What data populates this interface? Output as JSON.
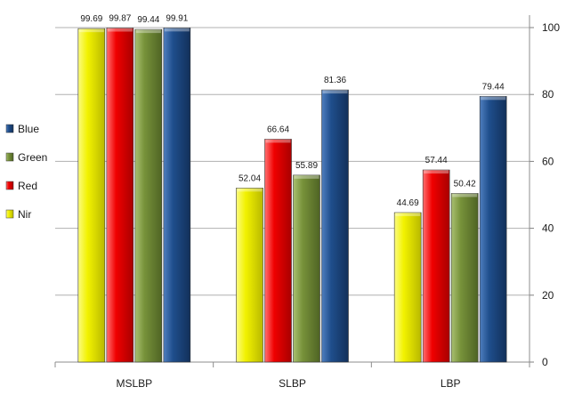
{
  "chart_data": {
    "type": "bar",
    "categories": [
      "MSLBP",
      "SLBP",
      "LBP"
    ],
    "series": [
      {
        "name": "Nir",
        "values": [
          99.69,
          52.04,
          44.69
        ],
        "color": "#f2f200"
      },
      {
        "name": "Red",
        "values": [
          99.87,
          66.64,
          57.44
        ],
        "color": "#f00000"
      },
      {
        "name": "Green",
        "values": [
          99.44,
          55.89,
          50.42
        ],
        "color": "#77923a"
      },
      {
        "name": "Blue",
        "values": [
          99.91,
          81.36,
          79.44
        ],
        "color": "#1f4e8c"
      }
    ],
    "data_labels": [
      [
        "99.69",
        "52.04",
        "44.69"
      ],
      [
        "99.87",
        "66.64",
        "57.44"
      ],
      [
        "99.44",
        "55.89",
        "50.42"
      ],
      [
        "99.91",
        "81.36",
        "79.44"
      ]
    ],
    "legend_order": [
      "Blue",
      "Green",
      "Red",
      "Nir"
    ],
    "legend_position": "left",
    "ylim": [
      0,
      100
    ],
    "yticks": [
      0,
      20,
      40,
      60,
      80,
      100
    ],
    "y_axis_side": "right",
    "gridlines": true,
    "title": "",
    "xlabel": "",
    "ylabel": ""
  }
}
